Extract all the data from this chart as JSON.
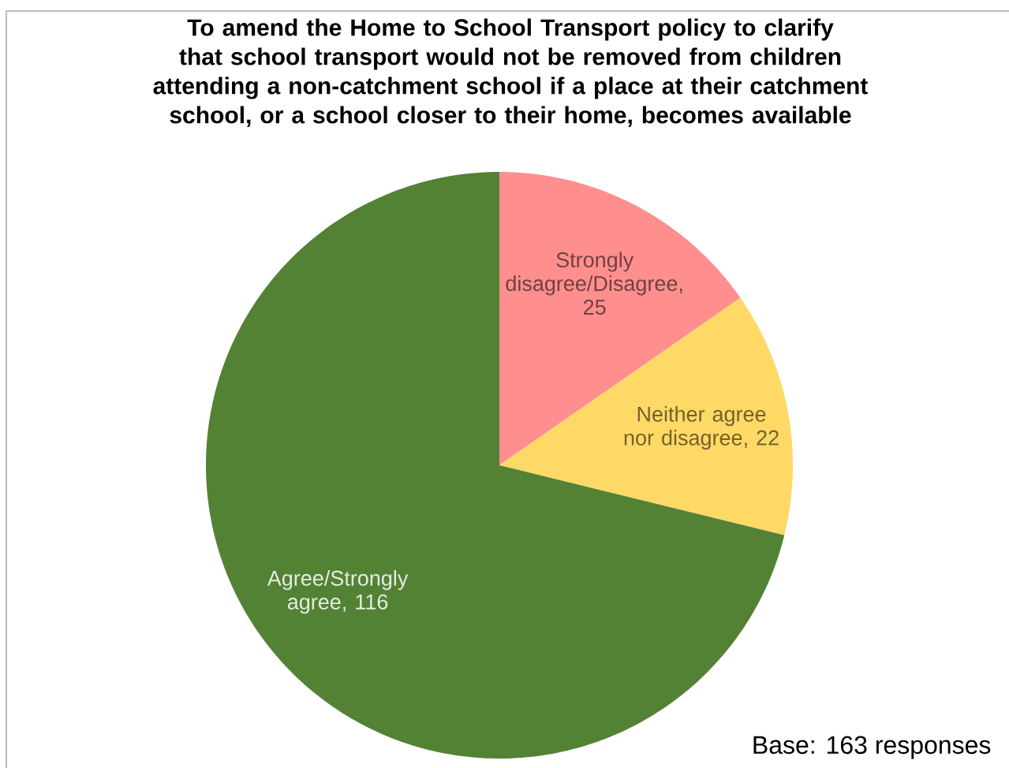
{
  "chart_data": {
    "type": "pie",
    "title": "To amend the Home to School Transport policy to clarify that school transport would not be removed from children attending a non-catchment school if a place at their catchment school, or a school closer to their home, becomes available",
    "categories": [
      "Strongly disagree/Disagree",
      "Neither agree nor disagree",
      "Agree/Strongly agree"
    ],
    "values": [
      25,
      22,
      116
    ],
    "colors": [
      "#ff8f8f",
      "#ffd966",
      "#548235"
    ],
    "value_labels": [
      ", 25",
      ", 22",
      ", 116"
    ],
    "annotations": [
      "Base: 163 responses"
    ]
  }
}
